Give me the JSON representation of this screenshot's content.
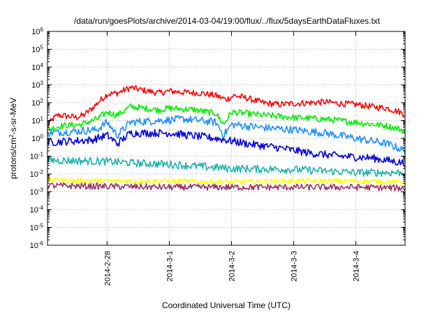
{
  "chart_data": {
    "type": "line",
    "title": "/data/run/goesPlots/archive/2014-03-04/19:00/flux/../flux/5daysEarthDataFluxes.txt",
    "xlabel": "Coordinated Universal Time (UTC)",
    "ylabel": {
      "prefix": "protons/cm",
      "sup": "2",
      "suffix": "-s-sr-MeV"
    },
    "yscale": "log",
    "ylim": [
      1e-06,
      1000000.0
    ],
    "y_ticks": [
      {
        "base": "10",
        "exp": "-6",
        "value": 1e-06
      },
      {
        "base": "10",
        "exp": "-5",
        "value": 1e-05
      },
      {
        "base": "10",
        "exp": "-4",
        "value": 0.0001
      },
      {
        "base": "10",
        "exp": "-3",
        "value": 0.001
      },
      {
        "base": "10",
        "exp": "-2",
        "value": 0.01
      },
      {
        "base": "10",
        "exp": "-1",
        "value": 0.1
      },
      {
        "base": "10",
        "exp": "0",
        "value": 1
      },
      {
        "base": "10",
        "exp": "1",
        "value": 10
      },
      {
        "base": "10",
        "exp": "2",
        "value": 100
      },
      {
        "base": "10",
        "exp": "3",
        "value": 1000
      },
      {
        "base": "10",
        "exp": "4",
        "value": 10000
      },
      {
        "base": "10",
        "exp": "5",
        "value": 100000
      },
      {
        "base": "10",
        "exp": "6",
        "value": 1000000
      }
    ],
    "xlim": [
      "2014-02-27T01:00",
      "2014-03-04T19:00"
    ],
    "x_ticks": [
      "2014-2-28",
      "2014-3-1",
      "2014-3-2",
      "2014-3-3",
      "2014-3-4"
    ],
    "x_tick_dates": [
      "2014-02-28T00:00",
      "2014-03-01T00:00",
      "2014-03-02T00:00",
      "2014-03-03T00:00",
      "2014-03-04T00:00"
    ],
    "grid": true,
    "legend": "none",
    "series": [
      {
        "color": "#ff0000",
        "noise": 0.18,
        "points": [
          [
            "2014-02-27T01:00",
            5
          ],
          [
            "2014-02-27T03:00",
            12
          ],
          [
            "2014-02-27T05:00",
            20
          ],
          [
            "2014-02-27T08:00",
            18
          ],
          [
            "2014-02-27T12:00",
            15
          ],
          [
            "2014-02-27T15:00",
            20
          ],
          [
            "2014-02-27T18:00",
            45
          ],
          [
            "2014-02-27T21:00",
            120
          ],
          [
            "2014-02-28T00:00",
            300
          ],
          [
            "2014-02-28T04:00",
            350
          ],
          [
            "2014-02-28T09:00",
            700
          ],
          [
            "2014-02-28T14:00",
            500
          ],
          [
            "2014-02-28T20:00",
            350
          ],
          [
            "2014-03-01T00:00",
            450
          ],
          [
            "2014-03-01T06:00",
            380
          ],
          [
            "2014-03-01T12:00",
            350
          ],
          [
            "2014-03-01T18:00",
            250
          ],
          [
            "2014-03-01T22:00",
            150
          ],
          [
            "2014-03-02T01:00",
            250
          ],
          [
            "2014-03-02T06:00",
            180
          ],
          [
            "2014-03-02T12:00",
            100
          ],
          [
            "2014-03-02T18:00",
            80
          ],
          [
            "2014-03-03T00:00",
            90
          ],
          [
            "2014-03-03T06:00",
            100
          ],
          [
            "2014-03-03T12:00",
            110
          ],
          [
            "2014-03-03T18:00",
            90
          ],
          [
            "2014-03-04T00:00",
            80
          ],
          [
            "2014-03-04T06:00",
            60
          ],
          [
            "2014-03-04T12:00",
            50
          ],
          [
            "2014-03-04T17:00",
            30
          ],
          [
            "2014-03-04T19:00",
            20
          ]
        ]
      },
      {
        "color": "#00ee00",
        "noise": 0.18,
        "points": [
          [
            "2014-02-27T01:00",
            3
          ],
          [
            "2014-02-27T06:00",
            5
          ],
          [
            "2014-02-27T14:00",
            6
          ],
          [
            "2014-02-27T20:00",
            12
          ],
          [
            "2014-02-28T00:00",
            30
          ],
          [
            "2014-02-28T04:00",
            20
          ],
          [
            "2014-02-28T09:00",
            60
          ],
          [
            "2014-02-28T14:00",
            50
          ],
          [
            "2014-02-28T20:00",
            40
          ],
          [
            "2014-03-01T00:00",
            50
          ],
          [
            "2014-03-01T10:00",
            40
          ],
          [
            "2014-03-01T18:00",
            25
          ],
          [
            "2014-03-01T21:00",
            6
          ],
          [
            "2014-03-02T00:00",
            30
          ],
          [
            "2014-03-02T06:00",
            25
          ],
          [
            "2014-03-02T12:00",
            20
          ],
          [
            "2014-03-03T00:00",
            15
          ],
          [
            "2014-03-03T12:00",
            12
          ],
          [
            "2014-03-04T00:00",
            8
          ],
          [
            "2014-03-04T12:00",
            5
          ],
          [
            "2014-03-04T18:00",
            3
          ],
          [
            "2014-03-04T19:00",
            2
          ]
        ]
      },
      {
        "color": "#1e90ff",
        "noise": 0.22,
        "points": [
          [
            "2014-02-27T01:00",
            2
          ],
          [
            "2014-02-27T12:00",
            2.5
          ],
          [
            "2014-02-27T20:00",
            3
          ],
          [
            "2014-02-28T00:00",
            8
          ],
          [
            "2014-02-28T04:00",
            1.5
          ],
          [
            "2014-02-28T09:00",
            8
          ],
          [
            "2014-02-28T20:00",
            10
          ],
          [
            "2014-03-01T06:00",
            12
          ],
          [
            "2014-03-01T18:00",
            8
          ],
          [
            "2014-03-01T21:00",
            1.5
          ],
          [
            "2014-03-02T00:00",
            6
          ],
          [
            "2014-03-02T12:00",
            4
          ],
          [
            "2014-03-03T00:00",
            3
          ],
          [
            "2014-03-03T12:00",
            2
          ],
          [
            "2014-03-04T00:00",
            1
          ],
          [
            "2014-03-04T12:00",
            0.5
          ],
          [
            "2014-03-04T19:00",
            0.2
          ]
        ]
      },
      {
        "color": "#0000dd",
        "noise": 0.22,
        "points": [
          [
            "2014-02-27T01:00",
            0.6
          ],
          [
            "2014-02-27T18:00",
            0.8
          ],
          [
            "2014-02-28T00:00",
            1.5
          ],
          [
            "2014-02-28T04:00",
            0.5
          ],
          [
            "2014-02-28T09:00",
            2
          ],
          [
            "2014-03-01T00:00",
            2
          ],
          [
            "2014-03-01T18:00",
            1
          ],
          [
            "2014-03-02T06:00",
            0.5
          ],
          [
            "2014-03-02T18:00",
            0.3
          ],
          [
            "2014-03-03T06:00",
            0.15
          ],
          [
            "2014-03-03T18:00",
            0.1
          ],
          [
            "2014-03-04T06:00",
            0.08
          ],
          [
            "2014-03-04T19:00",
            0.04
          ]
        ]
      },
      {
        "color": "#20b2aa",
        "noise": 0.22,
        "points": [
          [
            "2014-02-27T01:00",
            0.06
          ],
          [
            "2014-02-28T00:00",
            0.05
          ],
          [
            "2014-02-28T12:00",
            0.04
          ],
          [
            "2014-03-01T00:00",
            0.035
          ],
          [
            "2014-03-02T00:00",
            0.02
          ],
          [
            "2014-03-03T00:00",
            0.018
          ],
          [
            "2014-03-04T00:00",
            0.012
          ],
          [
            "2014-03-04T19:00",
            0.012
          ]
        ]
      },
      {
        "color": "#ffff00",
        "noise": 0.15,
        "points": [
          [
            "2014-02-27T01:00",
            0.0045
          ],
          [
            "2014-02-28T00:00",
            0.004
          ],
          [
            "2014-03-01T00:00",
            0.004
          ],
          [
            "2014-03-02T00:00",
            0.0035
          ],
          [
            "2014-03-03T00:00",
            0.004
          ],
          [
            "2014-03-04T00:00",
            0.004
          ],
          [
            "2014-03-04T19:00",
            0.0035
          ]
        ]
      },
      {
        "color": "#993366",
        "noise": 0.18,
        "points": [
          [
            "2014-02-27T01:00",
            0.0022
          ],
          [
            "2014-02-28T00:00",
            0.002
          ],
          [
            "2014-03-01T00:00",
            0.0018
          ],
          [
            "2014-03-02T00:00",
            0.0018
          ],
          [
            "2014-03-03T00:00",
            0.0018
          ],
          [
            "2014-03-04T00:00",
            0.0018
          ],
          [
            "2014-03-04T19:00",
            0.0016
          ]
        ]
      }
    ]
  }
}
